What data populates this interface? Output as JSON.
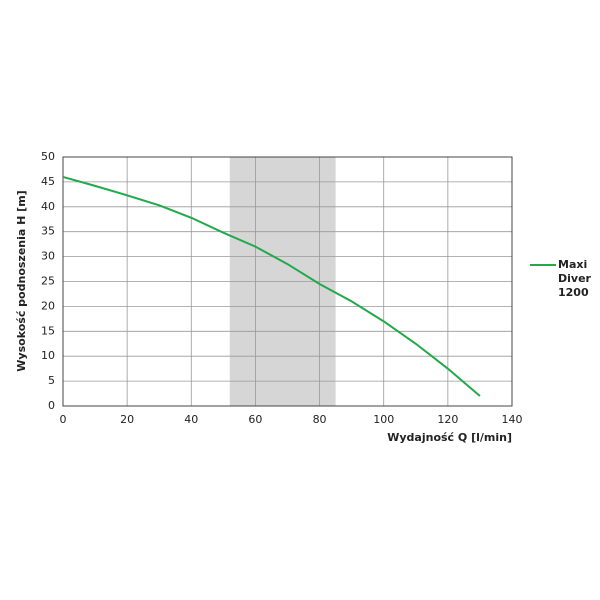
{
  "chart_data": {
    "type": "line",
    "x_label": "Wydajność Q [l/min]",
    "y_label": "Wysokość podnoszenia H [m]",
    "x": [
      0,
      10,
      20,
      30,
      40,
      50,
      60,
      70,
      80,
      90,
      100,
      110,
      120,
      130
    ],
    "series": [
      {
        "name": "Maxi Diver 1200",
        "color": "#22a94b",
        "values": [
          46,
          44.2,
          42.3,
          40.3,
          37.8,
          34.8,
          32,
          28.5,
          24.5,
          21,
          17,
          12.5,
          7.5,
          2
        ]
      }
    ],
    "highlight_range": [
      52,
      85
    ],
    "highlight_color": "#d6d6d6",
    "xlim": [
      0,
      140
    ],
    "xticks": [
      0,
      20,
      40,
      60,
      80,
      100,
      120,
      140
    ],
    "ylim": [
      0,
      50
    ],
    "yticks": [
      0,
      5,
      10,
      15,
      20,
      25,
      30,
      35,
      40,
      45,
      50
    ],
    "grid": true,
    "legend": "right"
  }
}
